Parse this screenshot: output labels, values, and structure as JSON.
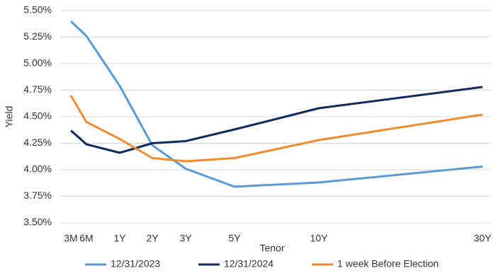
{
  "chart_data": {
    "type": "line",
    "x_label": "Tenor",
    "y_label": "Yield",
    "categories": [
      "3M",
      "6M",
      "1Y",
      "2Y",
      "3Y",
      "5Y",
      "10Y",
      "30Y"
    ],
    "series": [
      {
        "name": "12/31/2023",
        "color": "#5b9bd5",
        "values": [
          5.4,
          5.26,
          4.79,
          4.23,
          4.01,
          3.84,
          3.88,
          4.03
        ]
      },
      {
        "name": "12/31/2024",
        "color": "#0e2a5e",
        "values": [
          4.37,
          4.24,
          4.16,
          4.25,
          4.27,
          4.38,
          4.58,
          4.78
        ]
      },
      {
        "name": "1 week Before Election",
        "color": "#f28a2e",
        "values": [
          4.7,
          4.45,
          4.29,
          4.11,
          4.08,
          4.11,
          4.28,
          4.52
        ]
      }
    ],
    "ylim": [
      3.5,
      5.5
    ],
    "yticks": [
      {
        "value": 3.5,
        "label": "3.50%"
      },
      {
        "value": 3.75,
        "label": "3.75%"
      },
      {
        "value": 4.0,
        "label": "4.00%"
      },
      {
        "value": 4.25,
        "label": "4.25%"
      },
      {
        "value": 4.5,
        "label": "4.50%"
      },
      {
        "value": 4.75,
        "label": "4.75%"
      },
      {
        "value": 5.0,
        "label": "5.00%"
      },
      {
        "value": 5.25,
        "label": "5.25%"
      },
      {
        "value": 5.5,
        "label": "5.50%"
      }
    ],
    "grid": true,
    "legend": "bottom"
  }
}
